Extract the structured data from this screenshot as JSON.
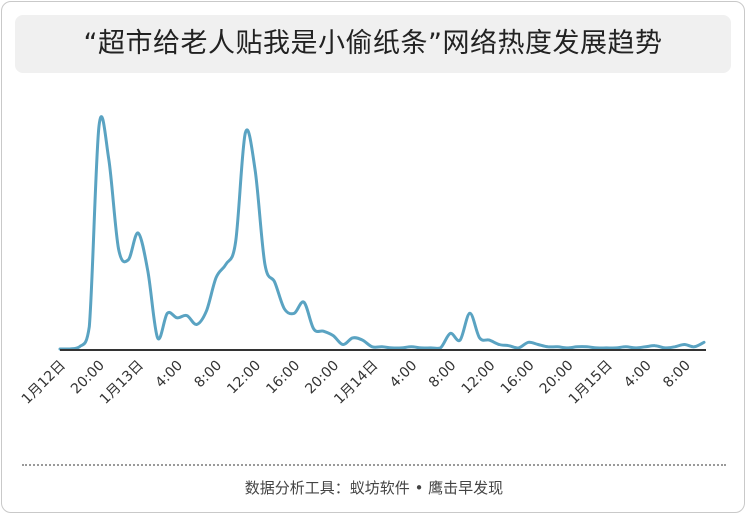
{
  "title": "“超市给老人贴我是小偷纸条”网络热度发展趋势",
  "footer": "数据分析工具：蚁坊软件 • 鹰击早发现",
  "colors": {
    "line": "#5aa3c2",
    "axis": "#333333",
    "title_bg": "#f0f0f0"
  },
  "chart_data": {
    "type": "line",
    "title": "“超市给老人贴我是小偷纸条”网络热度发展趋势",
    "xlabel": "",
    "ylabel": "",
    "grid": false,
    "legend": "none",
    "ylim": [
      0,
      100
    ],
    "x_ticks": [
      "1月12日",
      "20:00",
      "1月13日",
      "4:00",
      "8:00",
      "12:00",
      "16:00",
      "20:00",
      "1月14日",
      "4:00",
      "8:00",
      "12:00",
      "16:00",
      "20:00",
      "1月15日",
      "4:00",
      "8:00"
    ],
    "series": [
      {
        "values": [
          0,
          0,
          1,
          10,
          100,
          85,
          45,
          40,
          52,
          35,
          5,
          16,
          14,
          15,
          11,
          17,
          32,
          38,
          48,
          97,
          80,
          38,
          30,
          18,
          16,
          21,
          9,
          8,
          6,
          2,
          5,
          4,
          1,
          1,
          0.5,
          0.5,
          1,
          0.5,
          0.5,
          0.5,
          7,
          4,
          16,
          5,
          4,
          2,
          1.5,
          0.5,
          3,
          2,
          1,
          1,
          0.5,
          1,
          1,
          0.5,
          0.5,
          0.5,
          1,
          0.5,
          1,
          1.5,
          0.5,
          1,
          2,
          1,
          3
        ]
      }
    ]
  }
}
